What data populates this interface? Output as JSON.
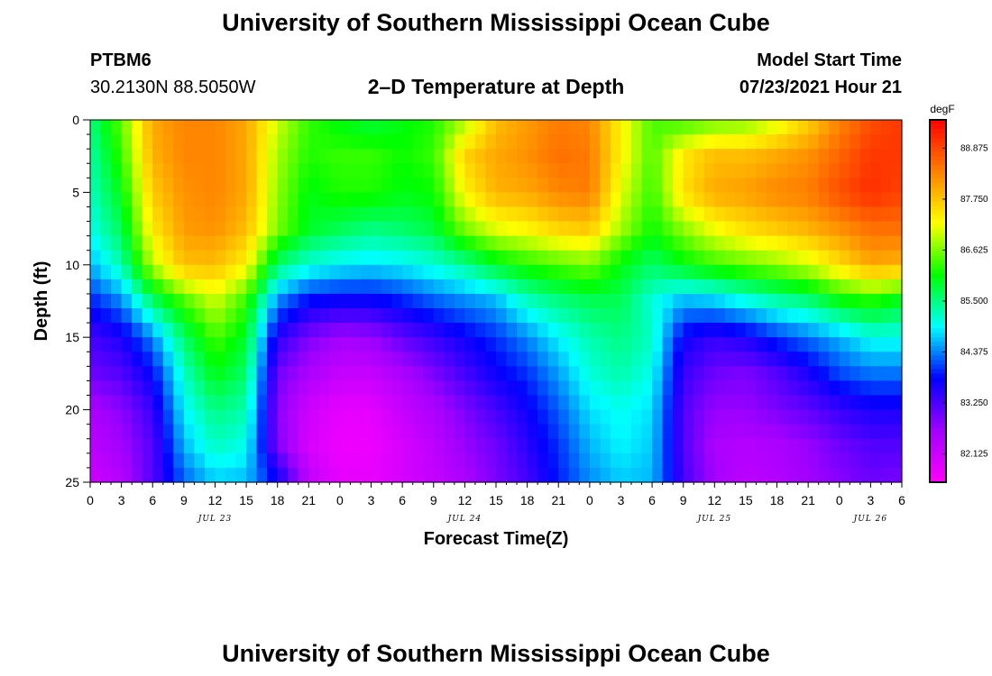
{
  "header": {
    "title": "University of Southern Mississippi Ocean Cube",
    "station": "PTBM6",
    "coords": "30.2130N  88.5050W",
    "subtitle": "2–D Temperature at Depth",
    "model_start_label": "Model Start Time",
    "model_start_value": "07/23/2021 Hour 21"
  },
  "footer": {
    "title": "University of Southern Mississippi Ocean Cube"
  },
  "chart_data": {
    "type": "heatmap",
    "title": "2–D Temperature at Depth",
    "xlabel": "Forecast Time(Z)",
    "ylabel": "Depth (ft)",
    "x_tick_labels": [
      "0",
      "3",
      "6",
      "9",
      "12",
      "15",
      "18",
      "21",
      "0",
      "3",
      "6",
      "9",
      "12",
      "15",
      "18",
      "21",
      "0",
      "3",
      "6",
      "9",
      "12",
      "15",
      "18",
      "21",
      "0",
      "3",
      "6"
    ],
    "date_labels": [
      {
        "label": "JUL 23",
        "tick_index": 4
      },
      {
        "label": "JUL 24",
        "tick_index": 12
      },
      {
        "label": "JUL 25",
        "tick_index": 20
      },
      {
        "label": "JUL 26",
        "tick_index": 25
      }
    ],
    "x_range_hours": [
      0,
      78
    ],
    "ylim": [
      0,
      25
    ],
    "y_ticks": [
      0,
      5,
      10,
      15,
      20,
      25
    ],
    "y_inverted": true,
    "colorbar": {
      "unit": "degF",
      "range": [
        81.5,
        89.5
      ],
      "tick_values": [
        82.125,
        83.25,
        84.375,
        85.5,
        86.625,
        87.75,
        88.875
      ],
      "tick_labels": [
        "82.125",
        "83.250",
        "84.375",
        "85.500",
        "86.625",
        "87.750",
        "88.875"
      ],
      "colors": [
        "#ff00ff",
        "#a000ff",
        "#0000ff",
        "#00ffff",
        "#00ff00",
        "#ffff00",
        "#ff8000",
        "#ff0000"
      ]
    },
    "time_hours": [
      0,
      3,
      6,
      9,
      12,
      15,
      18,
      21,
      24,
      27,
      30,
      33,
      36,
      39,
      42,
      45,
      48,
      51,
      54,
      57,
      60,
      63,
      66,
      69,
      72,
      75,
      78
    ],
    "depth_ft": [
      0,
      2.5,
      5,
      7.5,
      10,
      12.5,
      15,
      17.5,
      20,
      22.5,
      25
    ],
    "temperature_degF": [
      [
        85.5,
        86.5,
        88.0,
        88.3,
        88.3,
        88.0,
        87.0,
        86.3,
        86.0,
        85.8,
        86.0,
        86.2,
        86.8,
        87.8,
        88.1,
        88.4,
        88.3,
        87.3,
        86.4,
        86.3,
        86.5,
        86.6,
        87.0,
        87.6,
        88.3,
        88.8,
        89.0
      ],
      [
        85.3,
        86.3,
        87.9,
        88.3,
        88.3,
        88.0,
        86.8,
        86.2,
        86.3,
        86.3,
        86.1,
        86.3,
        87.6,
        88.0,
        88.2,
        88.5,
        88.4,
        87.3,
        86.4,
        87.4,
        87.8,
        87.8,
        88.0,
        88.2,
        88.6,
        89.0,
        89.0
      ],
      [
        85.2,
        86.0,
        87.7,
        88.2,
        88.3,
        88.0,
        86.7,
        86.0,
        86.2,
        86.2,
        86.0,
        86.1,
        87.3,
        87.9,
        88.0,
        88.3,
        88.4,
        87.1,
        86.3,
        87.5,
        88.0,
        88.1,
        88.3,
        88.4,
        88.8,
        89.1,
        88.9
      ],
      [
        85.0,
        85.7,
        87.4,
        88.1,
        88.2,
        87.8,
        86.6,
        85.9,
        85.7,
        85.5,
        85.6,
        85.8,
        86.6,
        87.1,
        87.3,
        87.6,
        87.7,
        86.8,
        86.1,
        86.7,
        87.2,
        87.5,
        87.7,
        87.9,
        88.2,
        88.5,
        88.5
      ],
      [
        84.6,
        85.3,
        86.9,
        87.8,
        87.8,
        87.3,
        85.6,
        85.1,
        84.9,
        84.8,
        84.9,
        85.1,
        85.4,
        85.9,
        86.2,
        86.4,
        86.6,
        86.0,
        85.6,
        86.0,
        86.3,
        86.5,
        86.7,
        87.0,
        87.5,
        88.0,
        87.9
      ],
      [
        83.9,
        84.4,
        85.6,
        86.4,
        87.0,
        86.3,
        84.4,
        83.8,
        83.7,
        83.7,
        83.9,
        84.2,
        84.4,
        84.6,
        85.2,
        85.5,
        85.7,
        85.7,
        85.1,
        84.6,
        84.7,
        85.0,
        85.3,
        85.5,
        86.0,
        86.2,
        85.9
      ],
      [
        83.3,
        83.6,
        84.4,
        85.6,
        86.4,
        85.9,
        83.5,
        82.9,
        82.6,
        82.7,
        83.1,
        83.4,
        83.7,
        84.0,
        84.4,
        84.9,
        85.3,
        85.5,
        85.2,
        83.7,
        83.4,
        83.6,
        84.0,
        84.3,
        84.6,
        85.0,
        85.0
      ],
      [
        83.0,
        83.2,
        83.8,
        85.2,
        86.0,
        85.6,
        83.0,
        82.5,
        82.2,
        82.2,
        82.5,
        82.9,
        83.3,
        83.7,
        84.0,
        84.5,
        85.1,
        85.3,
        85.0,
        83.4,
        83.0,
        82.9,
        83.2,
        83.6,
        84.1,
        84.3,
        84.3
      ],
      [
        82.5,
        82.8,
        83.4,
        84.9,
        85.5,
        85.3,
        82.8,
        82.1,
        81.8,
        81.8,
        82.2,
        82.5,
        82.9,
        83.3,
        83.7,
        84.2,
        84.8,
        85.0,
        84.8,
        83.2,
        82.7,
        82.7,
        82.9,
        83.1,
        83.4,
        83.6,
        83.6
      ],
      [
        82.3,
        82.6,
        83.2,
        84.6,
        85.2,
        85.0,
        82.9,
        82.0,
        81.7,
        81.7,
        82.0,
        82.3,
        82.7,
        83.0,
        83.5,
        84.0,
        84.6,
        84.9,
        84.7,
        83.2,
        82.5,
        82.4,
        82.5,
        82.7,
        83.0,
        83.2,
        83.2
      ],
      [
        82.1,
        82.4,
        83.2,
        84.2,
        84.7,
        84.6,
        83.8,
        82.3,
        81.8,
        81.8,
        82.0,
        82.2,
        82.5,
        82.9,
        83.3,
        83.9,
        84.4,
        84.7,
        84.6,
        83.3,
        82.6,
        82.3,
        82.4,
        82.6,
        82.8,
        83.0,
        82.9
      ]
    ],
    "grid": false,
    "legend": "right"
  }
}
